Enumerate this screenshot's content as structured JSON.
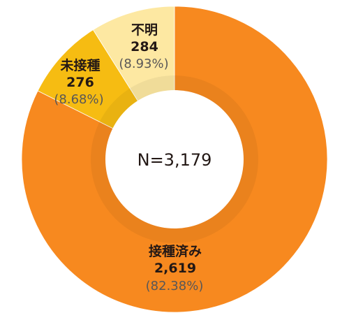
{
  "chart_data": {
    "type": "pie",
    "variant": "donut",
    "center_label": "N=3,179",
    "slices": [
      {
        "label": "接種済み",
        "value": 2619,
        "value_label": "2,619",
        "percent_label": "(82.38%)",
        "color": "#F7891F"
      },
      {
        "label": "未接種",
        "value": 276,
        "value_label": "276",
        "percent_label": "(8.68%)",
        "color": "#F6BC12"
      },
      {
        "label": "不明",
        "value": 284,
        "value_label": "284",
        "percent_label": "(8.93%)",
        "color": "#FDE8A2"
      }
    ],
    "legend": "none"
  }
}
